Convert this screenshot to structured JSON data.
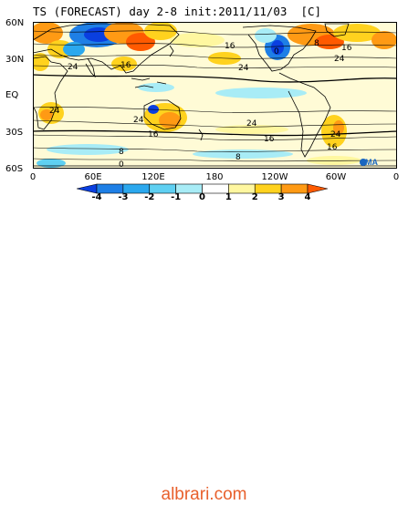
{
  "title": "TS (FORECAST) day 2-8 init:2011/11/03  [C]",
  "latitude_labels": [
    "60N",
    "30N",
    "EQ",
    "30S",
    "60S"
  ],
  "longitude_labels": [
    "0",
    "60E",
    "120E",
    "180",
    "120W",
    "60W",
    "0"
  ],
  "colorbar": {
    "tick_labels": [
      "-4",
      "-3",
      "-2",
      "-1",
      "0",
      "1",
      "2",
      "3",
      "4"
    ],
    "colors": [
      "#0a3fe0",
      "#1e7fe6",
      "#2ba8ee",
      "#5fd0f2",
      "#a8ecf6",
      "#ffffff",
      "#fff7a0",
      "#ffd21e",
      "#ff9a14",
      "#ff5a00"
    ]
  },
  "contour_labels": [
    "16",
    "24",
    "0",
    "16",
    "24",
    "8",
    "16",
    "24",
    "24",
    "24",
    "16",
    "24",
    "16",
    "8",
    "24",
    "16",
    "8",
    "0"
  ],
  "logo_text": "JMA",
  "watermark": "albrari.com"
}
